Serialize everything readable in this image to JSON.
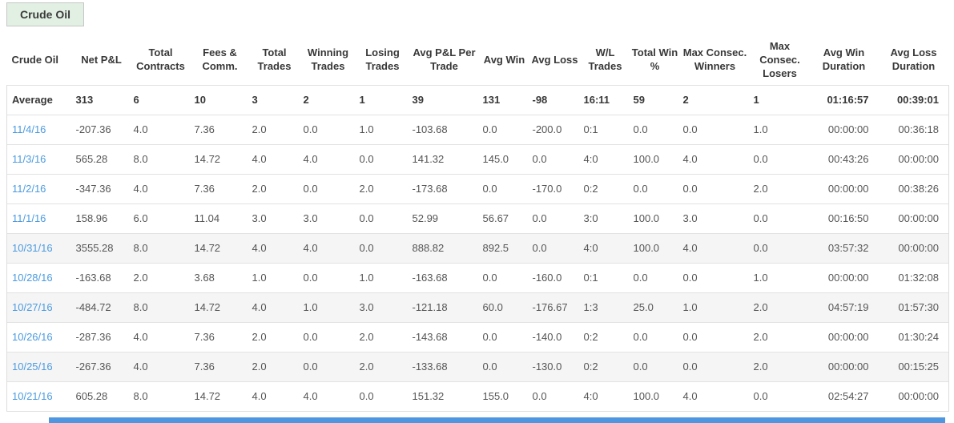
{
  "tab": {
    "label": "Crude Oil"
  },
  "table": {
    "columns": [
      "Crude Oil",
      "Net P&L",
      "Total Contracts",
      "Fees & Comm.",
      "Total Trades",
      "Winning Trades",
      "Losing Trades",
      "Avg P&L Per Trade",
      "Avg Win",
      "Avg Loss",
      "W/L Trades",
      "Total Win %",
      "Max Consec. Winners",
      "Max Consec. Losers",
      "Avg Win Duration",
      "Avg Loss Duration"
    ],
    "average_row": [
      "Average",
      "313",
      "6",
      "10",
      "3",
      "2",
      "1",
      "39",
      "131",
      "-98",
      "16:11",
      "59",
      "2",
      "1",
      "01:16:57",
      "00:39:01"
    ],
    "rows": [
      [
        "11/4/16",
        "-207.36",
        "4.0",
        "7.36",
        "2.0",
        "0.0",
        "1.0",
        "-103.68",
        "0.0",
        "-200.0",
        "0:1",
        "0.0",
        "0.0",
        "1.0",
        "00:00:00",
        "00:36:18"
      ],
      [
        "11/3/16",
        "565.28",
        "8.0",
        "14.72",
        "4.0",
        "4.0",
        "0.0",
        "141.32",
        "145.0",
        "0.0",
        "4:0",
        "100.0",
        "4.0",
        "0.0",
        "00:43:26",
        "00:00:00"
      ],
      [
        "11/2/16",
        "-347.36",
        "4.0",
        "7.36",
        "2.0",
        "0.0",
        "2.0",
        "-173.68",
        "0.0",
        "-170.0",
        "0:2",
        "0.0",
        "0.0",
        "2.0",
        "00:00:00",
        "00:38:26"
      ],
      [
        "11/1/16",
        "158.96",
        "6.0",
        "11.04",
        "3.0",
        "3.0",
        "0.0",
        "52.99",
        "56.67",
        "0.0",
        "3:0",
        "100.0",
        "3.0",
        "0.0",
        "00:16:50",
        "00:00:00"
      ],
      [
        "10/31/16",
        "3555.28",
        "8.0",
        "14.72",
        "4.0",
        "4.0",
        "0.0",
        "888.82",
        "892.5",
        "0.0",
        "4:0",
        "100.0",
        "4.0",
        "0.0",
        "03:57:32",
        "00:00:00"
      ],
      [
        "10/28/16",
        "-163.68",
        "2.0",
        "3.68",
        "1.0",
        "0.0",
        "1.0",
        "-163.68",
        "0.0",
        "-160.0",
        "0:1",
        "0.0",
        "0.0",
        "1.0",
        "00:00:00",
        "01:32:08"
      ],
      [
        "10/27/16",
        "-484.72",
        "8.0",
        "14.72",
        "4.0",
        "1.0",
        "3.0",
        "-121.18",
        "60.0",
        "-176.67",
        "1:3",
        "25.0",
        "1.0",
        "2.0",
        "04:57:19",
        "01:57:30"
      ],
      [
        "10/26/16",
        "-287.36",
        "4.0",
        "7.36",
        "2.0",
        "0.0",
        "2.0",
        "-143.68",
        "0.0",
        "-140.0",
        "0:2",
        "0.0",
        "0.0",
        "2.0",
        "00:00:00",
        "01:30:24"
      ],
      [
        "10/25/16",
        "-267.36",
        "4.0",
        "7.36",
        "2.0",
        "0.0",
        "2.0",
        "-133.68",
        "0.0",
        "-130.0",
        "0:2",
        "0.0",
        "0.0",
        "2.0",
        "00:00:00",
        "00:15:25"
      ],
      [
        "10/21/16",
        "605.28",
        "8.0",
        "14.72",
        "4.0",
        "4.0",
        "0.0",
        "151.32",
        "155.0",
        "0.0",
        "4:0",
        "100.0",
        "4.0",
        "0.0",
        "02:54:27",
        "00:00:00"
      ]
    ]
  },
  "colors": {
    "tab_background": "#e2f0e3",
    "date_link": "#4b9be0",
    "row_stripe": "#f5f5f5",
    "selection_bar": "#4e96df"
  }
}
